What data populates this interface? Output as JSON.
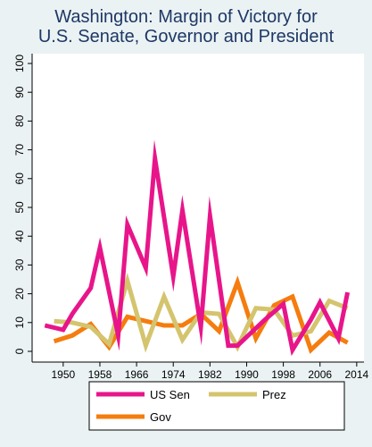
{
  "chart_data": {
    "type": "line",
    "title_lines": [
      "Washington: Margin of Victory for",
      "U.S. Senate, Governor and President"
    ],
    "xlabel": "",
    "ylabel": "",
    "xlim": [
      1944,
      2015
    ],
    "ylim": [
      0,
      100
    ],
    "x_ticks": [
      1950,
      1958,
      1966,
      1974,
      1982,
      1990,
      1998,
      2006,
      2014
    ],
    "y_ticks": [
      0,
      10,
      20,
      30,
      40,
      50,
      60,
      70,
      80,
      90,
      100
    ],
    "grid": false,
    "legend_position": "bottom",
    "series": [
      {
        "name": "US Sen",
        "color": "#e8158a",
        "points": [
          [
            1946,
            9
          ],
          [
            1950,
            7.5
          ],
          [
            1952,
            13
          ],
          [
            1956,
            22
          ],
          [
            1958,
            36
          ],
          [
            1962,
            5.5
          ],
          [
            1964,
            44
          ],
          [
            1968,
            29
          ],
          [
            1970,
            67
          ],
          [
            1974,
            26
          ],
          [
            1976,
            49
          ],
          [
            1980,
            8.5
          ],
          [
            1982,
            47
          ],
          [
            1986,
            2
          ],
          [
            1988,
            2
          ],
          [
            1992,
            8
          ],
          [
            1994,
            11
          ],
          [
            1998,
            16.5
          ],
          [
            2000,
            0.5
          ],
          [
            2004,
            11
          ],
          [
            2006,
            17
          ],
          [
            2010,
            4.5
          ],
          [
            2012,
            20.5
          ]
        ]
      },
      {
        "name": "Prez",
        "color": "#d4c46e",
        "points": [
          [
            1948,
            10.5
          ],
          [
            1952,
            10
          ],
          [
            1956,
            8.5
          ],
          [
            1960,
            2.5
          ],
          [
            1964,
            24.5
          ],
          [
            1968,
            2
          ],
          [
            1972,
            19
          ],
          [
            1976,
            4
          ],
          [
            1980,
            13.5
          ],
          [
            1984,
            13
          ],
          [
            1988,
            1.5
          ],
          [
            1992,
            15
          ],
          [
            1996,
            14.5
          ],
          [
            2000,
            5.5
          ],
          [
            2004,
            7
          ],
          [
            2008,
            17.5
          ],
          [
            2012,
            15
          ]
        ]
      },
      {
        "name": "Gov",
        "color": "#f57c0e",
        "points": [
          [
            1948,
            3.5
          ],
          [
            1952,
            5.5
          ],
          [
            1956,
            9.5
          ],
          [
            1960,
            1.5
          ],
          [
            1964,
            12
          ],
          [
            1968,
            10.5
          ],
          [
            1972,
            9
          ],
          [
            1976,
            9
          ],
          [
            1980,
            13
          ],
          [
            1984,
            7
          ],
          [
            1988,
            24
          ],
          [
            1992,
            4.5
          ],
          [
            1996,
            16
          ],
          [
            2000,
            19
          ],
          [
            2004,
            0.5
          ],
          [
            2008,
            6.5
          ],
          [
            2012,
            3
          ]
        ]
      }
    ]
  }
}
